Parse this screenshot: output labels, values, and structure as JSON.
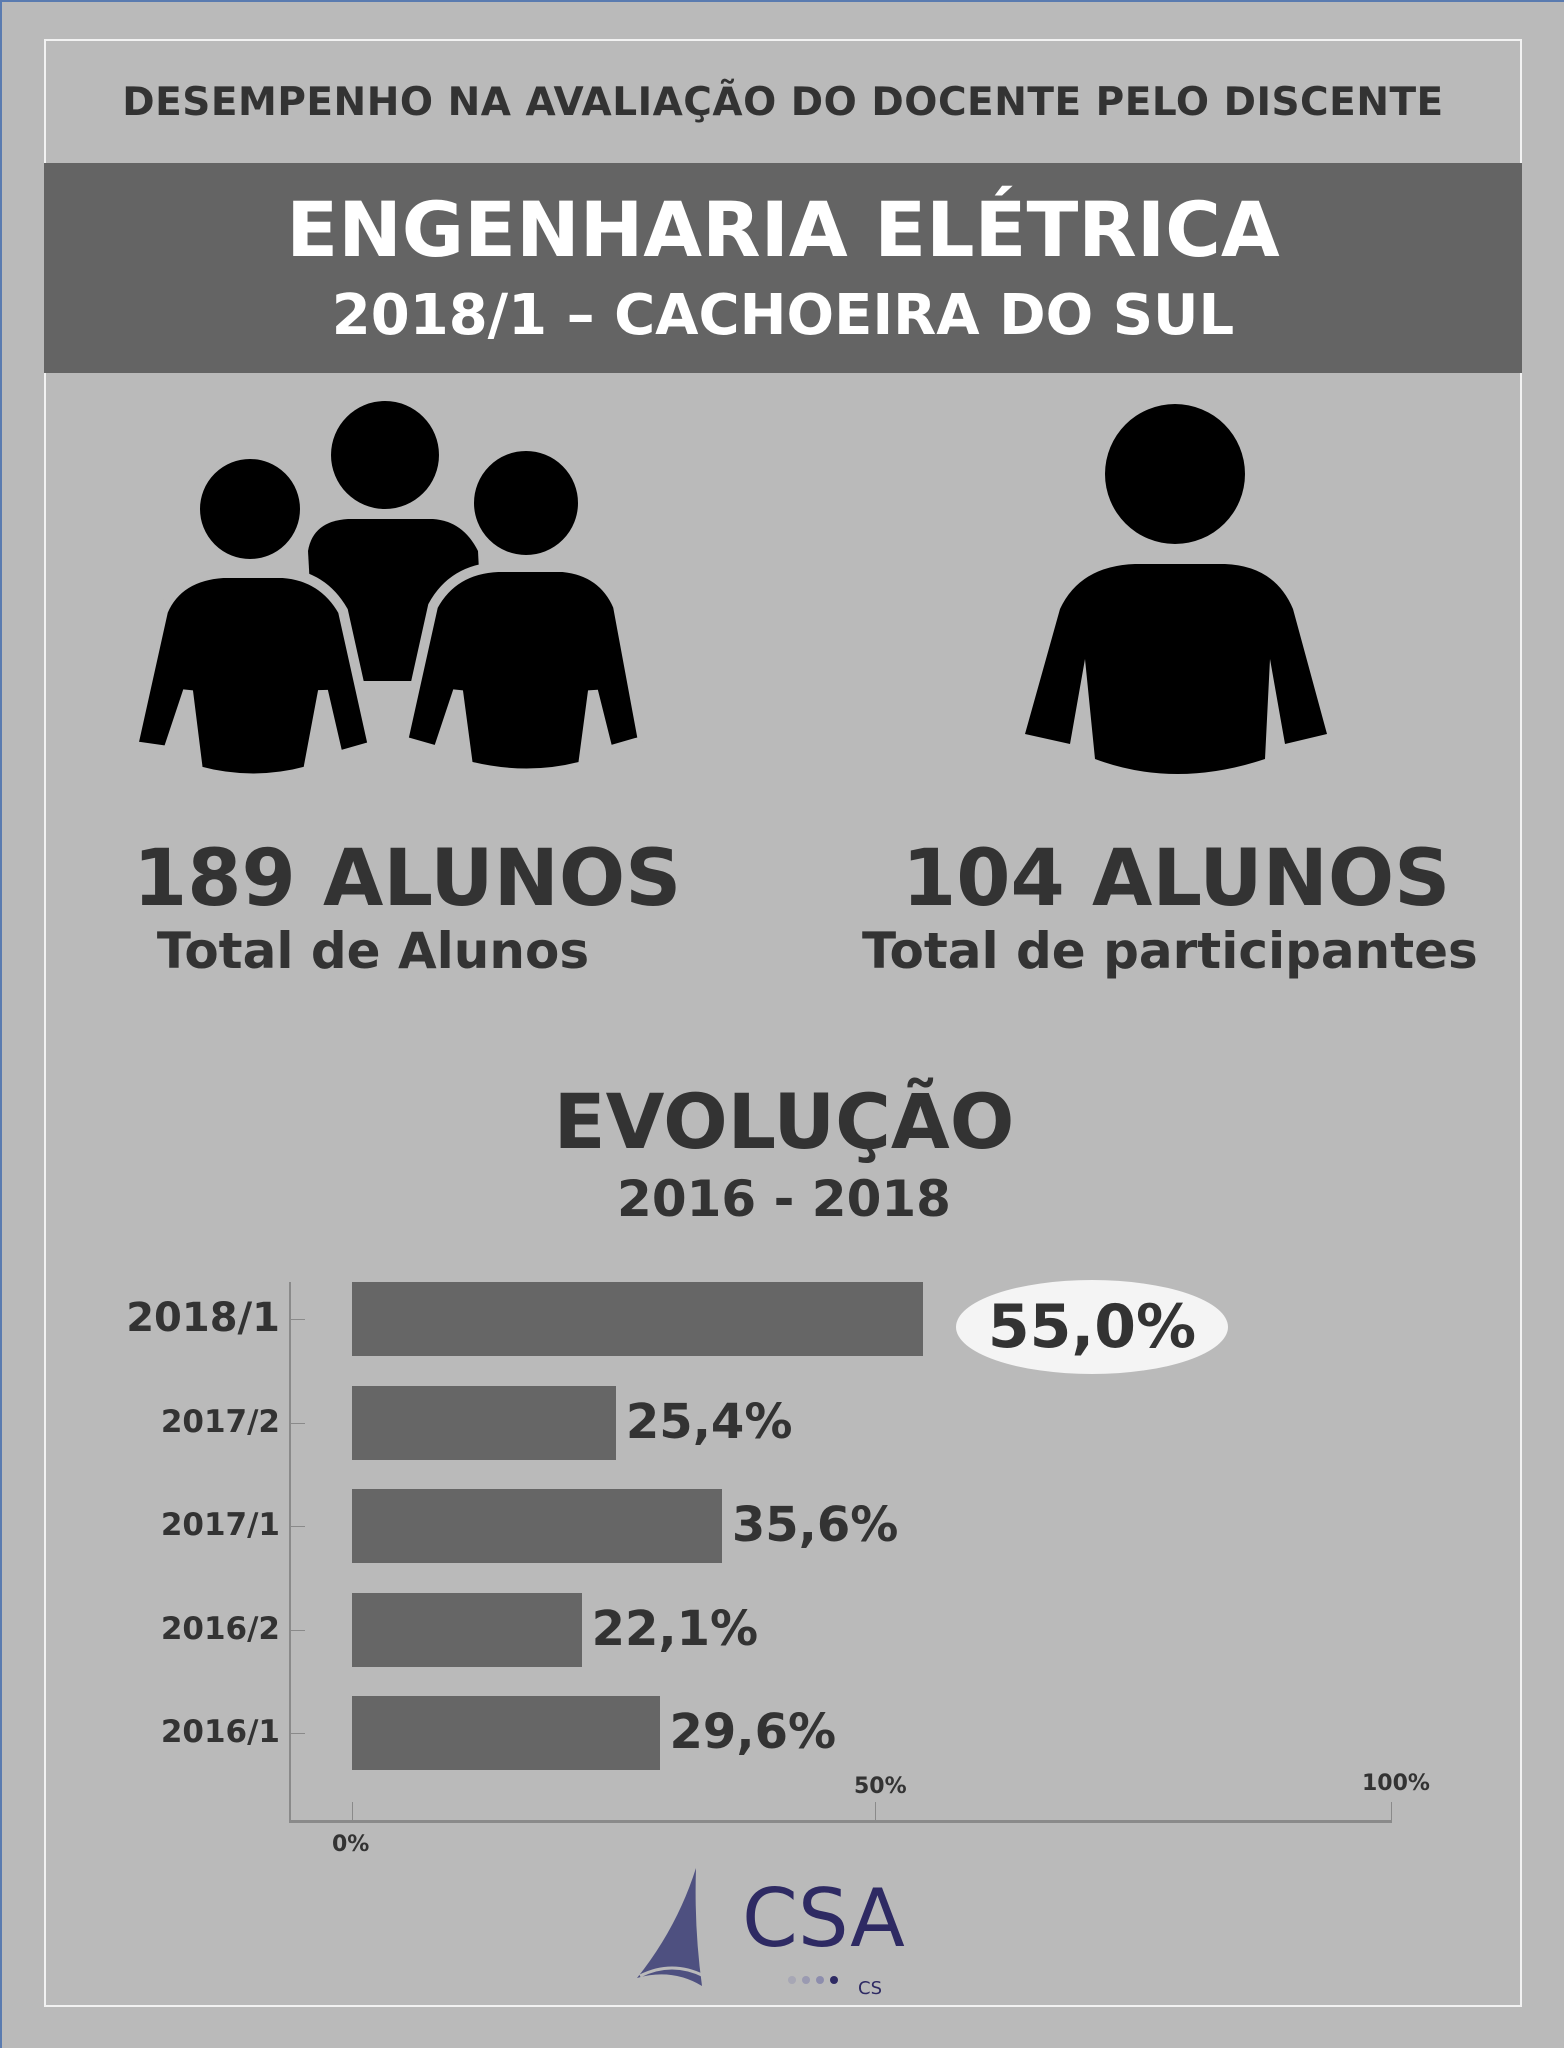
{
  "header": {
    "top_heading": "DESEMPENHO NA AVALIAÇÃO DO DOCENTE PELO DISCENTE",
    "course": "ENGENHARIA ELÉTRICA",
    "period_campus": "2018/1 – CACHOEIRA DO SUL"
  },
  "stats": [
    {
      "value": "189 ALUNOS",
      "label": "Total de Alunos",
      "icon": "group-people-icon"
    },
    {
      "value": "104 ALUNOS",
      "label": "Total de participantes",
      "icon": "person-icon"
    }
  ],
  "evolution": {
    "title": "EVOLUÇÃO",
    "range": "2016 - 2018"
  },
  "chart_data": {
    "type": "bar",
    "orientation": "horizontal",
    "title": "EVOLUÇÃO 2016 - 2018",
    "categories": [
      "2018/1",
      "2017/2",
      "2017/1",
      "2016/2",
      "2016/1"
    ],
    "values": [
      55.0,
      25.4,
      35.6,
      22.1,
      29.6
    ],
    "value_labels": [
      "55,0%",
      "25,4%",
      "35,6%",
      "22,1%",
      "29,6%"
    ],
    "xlim": [
      0,
      100
    ],
    "x_ticks": [
      "0%",
      "50%",
      "100%"
    ],
    "highlight_index": 0,
    "bar_color": "#666666"
  },
  "logo": {
    "text": "CSA",
    "subtext": "CS",
    "color": "#2e2a63"
  }
}
